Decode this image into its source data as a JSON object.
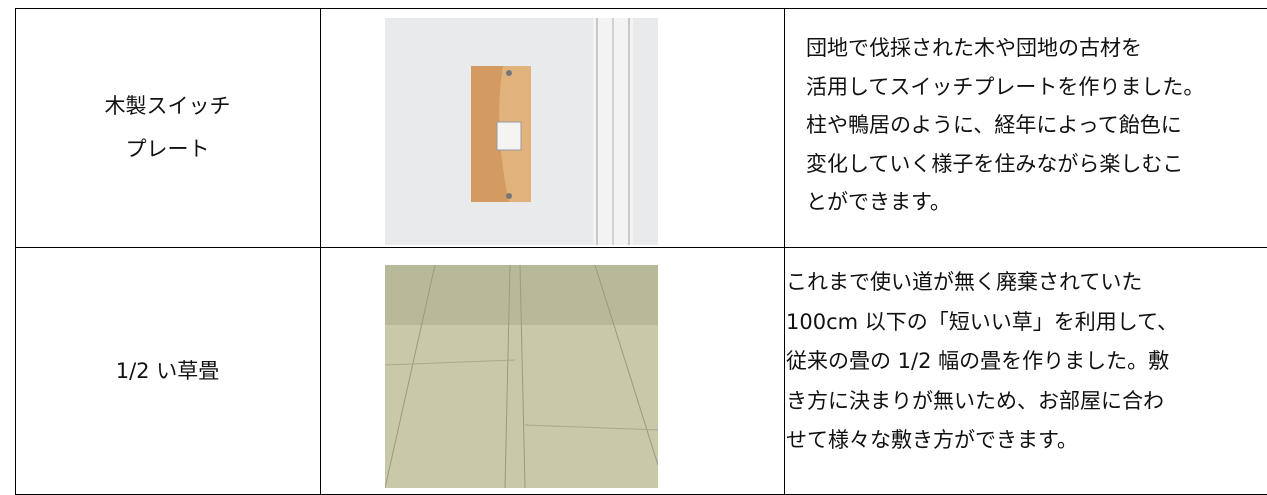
{
  "table": {
    "rows": [
      {
        "name": [
          "木製スイッチ",
          "プレート"
        ],
        "description": [
          "団地で伐採された木や団地の古材を",
          "活用してスイッチプレートを作りました。",
          "柱や鴨居のように、経年によって飴色に",
          "変化していく様子を住みながら楽しむこ",
          "とができます。"
        ]
      },
      {
        "name": [
          "1/2 い草畳"
        ],
        "description": [
          "これまで使い道が無く廃棄されていた",
          "100cm 以下の「短いい草」を利用して、",
          "従来の畳の 1/2 幅の畳を作りました。敷",
          "き方に決まりが無いため、お部屋に合わ",
          "せて様々な敷き方ができます。"
        ]
      }
    ]
  }
}
